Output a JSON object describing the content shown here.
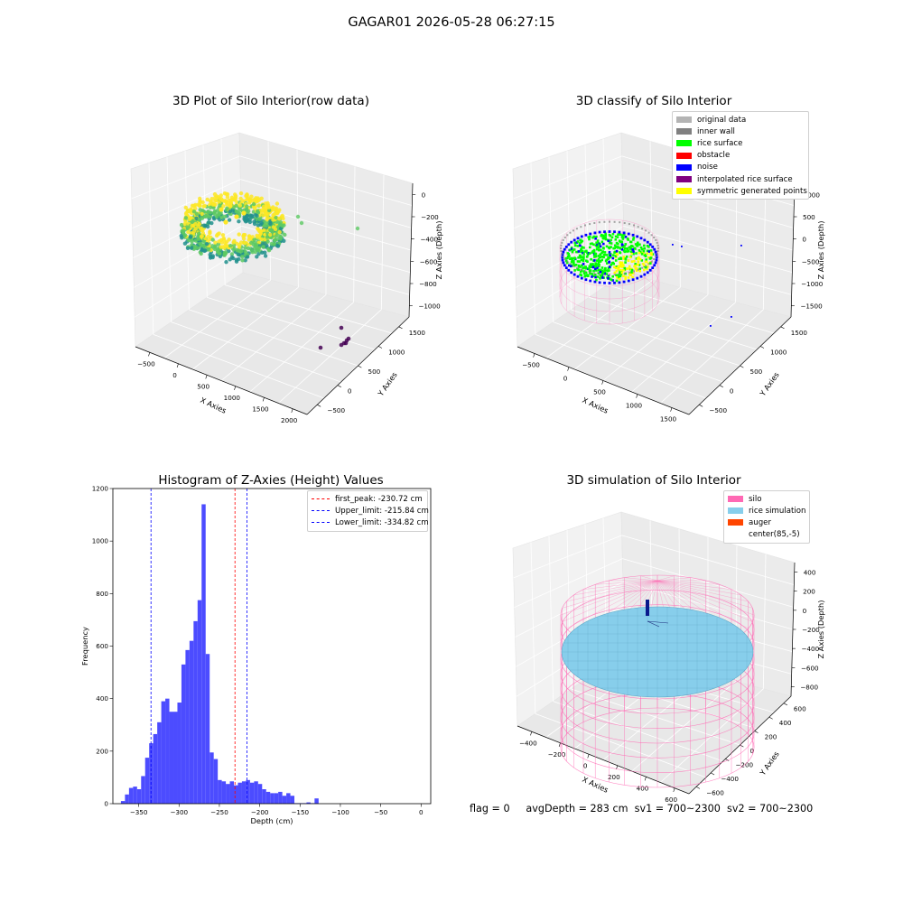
{
  "suptitle": "GAGAR01 2026-05-28 06:27:15",
  "footer": {
    "flag": "flag = 0",
    "avg_depth": "avgDepth = 283 cm",
    "sv1": "sv1 = 700~2300",
    "sv2": "sv2 = 700~2300"
  },
  "chart_data": [
    {
      "id": "raw",
      "type": "scatter",
      "projection": "3d",
      "title": "3D Plot of Silo Interior(row data)",
      "xlabel": "X Axies",
      "ylabel": "Y Axies",
      "zlabel": "Z Axies (Depth)",
      "xticks": [
        "−500",
        "0",
        "500",
        "1000",
        "1500",
        "2000"
      ],
      "yticks": [
        "−500",
        "0",
        "500",
        "1000",
        "1500"
      ],
      "zticks": [
        "−1000",
        "−800",
        "−600",
        "−400",
        "−200",
        "0"
      ],
      "colormap": [
        "#440154",
        "#3b528b",
        "#21908d",
        "#5dc963",
        "#fde725"
      ],
      "outliers_note": "scattered outlier points"
    },
    {
      "id": "classified",
      "type": "scatter",
      "projection": "3d",
      "title": "3D classify of Silo Interior",
      "xlabel": "X Axies",
      "ylabel": "Y Axies",
      "zlabel": "Z Axies (Depth)",
      "xticks": [
        "−500",
        "0",
        "500",
        "1000",
        "1500"
      ],
      "yticks": [
        "−500",
        "0",
        "500",
        "1000",
        "1500"
      ],
      "zticks": [
        "−1500",
        "−1000",
        "−500",
        "0",
        "500",
        "1000"
      ],
      "legend": [
        {
          "label": "original data",
          "color": "#b4b4b4"
        },
        {
          "label": "inner wall",
          "color": "#808080"
        },
        {
          "label": "rice surface",
          "color": "#00ff00"
        },
        {
          "label": "obstacle",
          "color": "#ff0000"
        },
        {
          "label": "noise",
          "color": "#0000ff"
        },
        {
          "label": "interpolated rice surface",
          "color": "#800080"
        },
        {
          "label": "symmetric generated points",
          "color": "#ffff00"
        }
      ]
    },
    {
      "id": "histogram",
      "type": "bar",
      "title": "Histogram of Z-Axies (Height) Values",
      "xlabel": "Depth (cm)",
      "ylabel": "Frequency",
      "xlim": [
        -382,
        12
      ],
      "ylim": [
        0,
        1200
      ],
      "xticks": [
        -350,
        -300,
        -250,
        -200,
        -150,
        -100,
        -50,
        0
      ],
      "xtick_labels": [
        "−350",
        "−300",
        "−250",
        "−200",
        "−150",
        "−100",
        "−50",
        "0"
      ],
      "yticks": [
        0,
        200,
        400,
        600,
        800,
        1000,
        1200
      ],
      "bar_color": "#4c4cff",
      "bin_width": 5.0,
      "bin_start": -372,
      "values": [
        10,
        35,
        60,
        65,
        55,
        105,
        175,
        230,
        265,
        310,
        390,
        400,
        350,
        350,
        385,
        530,
        585,
        620,
        695,
        775,
        1140,
        570,
        195,
        170,
        90,
        85,
        75,
        85,
        70,
        80,
        85,
        90,
        80,
        85,
        75,
        55,
        45,
        40,
        40,
        45,
        30,
        40,
        30,
        2,
        2,
        2,
        5,
        2,
        20
      ],
      "vlines": [
        {
          "label": "first_peak: -230.72 cm",
          "x": -230.72,
          "color": "#ff0000"
        },
        {
          "label": "Upper_limit: -215.84 cm",
          "x": -215.84,
          "color": "#0000ff"
        },
        {
          "label": "Lower_limit: -334.82 cm",
          "x": -334.82,
          "color": "#0000ff"
        }
      ]
    },
    {
      "id": "simulation",
      "type": "surface",
      "projection": "3d",
      "title": "3D simulation of Silo Interior",
      "xlabel": "X Axies",
      "ylabel": "Y Axies",
      "zlabel": "Z Axies (Depth)",
      "xticks": [
        "−400",
        "−200",
        "0",
        "200",
        "400",
        "600"
      ],
      "yticks": [
        "−600",
        "−400",
        "−200",
        "0",
        "200",
        "400",
        "600"
      ],
      "zticks": [
        "−800",
        "−600",
        "−400",
        "−200",
        "0",
        "200",
        "400"
      ],
      "legend": [
        {
          "label": "silo",
          "color": "#ff69b4"
        },
        {
          "label": "rice simulation",
          "color": "#87ceeb"
        },
        {
          "label": "auger",
          "color": "#ff4500"
        },
        {
          "label": "center(85,-5)",
          "color": "#ffffff"
        }
      ]
    }
  ]
}
